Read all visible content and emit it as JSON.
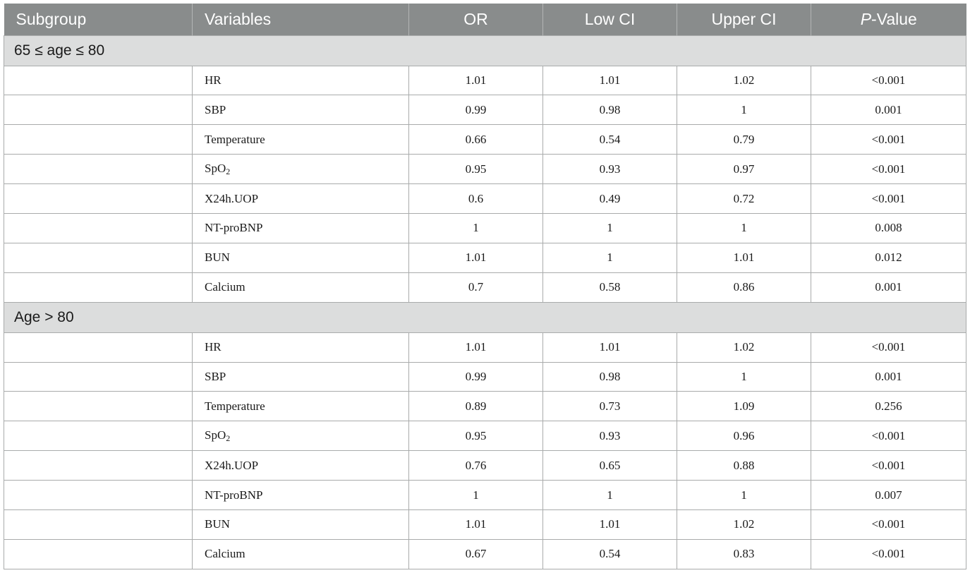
{
  "header": {
    "subgroup": "Subgroup",
    "variables": "Variables",
    "or": "OR",
    "low_ci": "Low CI",
    "upper_ci": "Upper CI",
    "p_italic": "P",
    "p_rest": "-Value"
  },
  "groups": [
    {
      "label": "65 ≤ age ≤ 80",
      "rows": [
        {
          "var": "HR",
          "sub": "",
          "or": "1.01",
          "low": "1.01",
          "up": "1.02",
          "p": "<0.001"
        },
        {
          "var": "SBP",
          "sub": "",
          "or": "0.99",
          "low": "0.98",
          "up": "1",
          "p": "0.001"
        },
        {
          "var": "Temperature",
          "sub": "",
          "or": "0.66",
          "low": "0.54",
          "up": "0.79",
          "p": "<0.001"
        },
        {
          "var": "SpO",
          "sub": "2",
          "or": "0.95",
          "low": "0.93",
          "up": "0.97",
          "p": "<0.001"
        },
        {
          "var": "X24h.UOP",
          "sub": "",
          "or": "0.6",
          "low": "0.49",
          "up": "0.72",
          "p": "<0.001"
        },
        {
          "var": "NT-proBNP",
          "sub": "",
          "or": "1",
          "low": "1",
          "up": "1",
          "p": "0.008"
        },
        {
          "var": "BUN",
          "sub": "",
          "or": "1.01",
          "low": "1",
          "up": "1.01",
          "p": "0.012"
        },
        {
          "var": "Calcium",
          "sub": "",
          "or": "0.7",
          "low": "0.58",
          "up": "0.86",
          "p": "0.001"
        }
      ]
    },
    {
      "label": "Age > 80",
      "rows": [
        {
          "var": "HR",
          "sub": "",
          "or": "1.01",
          "low": "1.01",
          "up": "1.02",
          "p": "<0.001"
        },
        {
          "var": "SBP",
          "sub": "",
          "or": "0.99",
          "low": "0.98",
          "up": "1",
          "p": "0.001"
        },
        {
          "var": "Temperature",
          "sub": "",
          "or": "0.89",
          "low": "0.73",
          "up": "1.09",
          "p": "0.256"
        },
        {
          "var": "SpO",
          "sub": "2",
          "or": "0.95",
          "low": "0.93",
          "up": "0.96",
          "p": "<0.001"
        },
        {
          "var": "X24h.UOP",
          "sub": "",
          "or": "0.76",
          "low": "0.65",
          "up": "0.88",
          "p": "<0.001"
        },
        {
          "var": "NT-proBNP",
          "sub": "",
          "or": "1",
          "low": "1",
          "up": "1",
          "p": "0.007"
        },
        {
          "var": "BUN",
          "sub": "",
          "or": "1.01",
          "low": "1.01",
          "up": "1.02",
          "p": "<0.001"
        },
        {
          "var": "Calcium",
          "sub": "",
          "or": "0.67",
          "low": "0.54",
          "up": "0.83",
          "p": "<0.001"
        }
      ]
    }
  ]
}
